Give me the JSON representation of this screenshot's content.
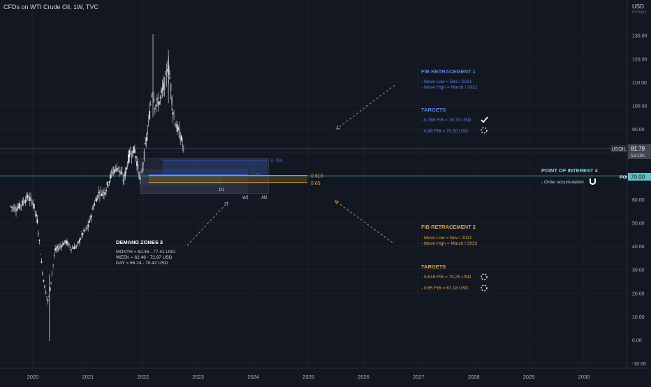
{
  "chart_data": {
    "type": "candlestick",
    "title": "CFDs on WTI Crude Oil, 1W, TVC",
    "currency": "USD",
    "currency_hint": "Multiply",
    "ylim": [
      -13,
      140
    ],
    "y_ticks": [
      130,
      120,
      110,
      100,
      90,
      80,
      70,
      60,
      50,
      40,
      30,
      20,
      10,
      0,
      -10
    ],
    "y_tick_labels": [
      "130.00",
      "120.00",
      "110.00",
      "100.00",
      "90.00",
      "80.00",
      "70.00",
      "60.00",
      "50.00",
      "40.00",
      "30.00",
      "20.00",
      "10.00",
      "0.00",
      "-10.00"
    ],
    "xlim": [
      2019.6,
      2030.9
    ],
    "x_ticks": [
      2020,
      2021,
      2022,
      2023,
      2024,
      2025,
      2026,
      2027,
      2028,
      2029,
      2030
    ],
    "x_tick_labels": [
      "2020",
      "2021",
      "2022",
      "2023",
      "2024",
      "2025",
      "2026",
      "2027",
      "2028",
      "2029",
      "2030"
    ],
    "grid": true,
    "price_path": [
      [
        2019.6,
        57
      ],
      [
        2019.7,
        56
      ],
      [
        2019.8,
        58
      ],
      [
        2019.9,
        61
      ],
      [
        2020.0,
        59
      ],
      [
        2020.08,
        51
      ],
      [
        2020.17,
        30
      ],
      [
        2020.22,
        22
      ],
      [
        2020.28,
        16
      ],
      [
        2020.33,
        25
      ],
      [
        2020.4,
        38
      ],
      [
        2020.5,
        40
      ],
      [
        2020.6,
        42
      ],
      [
        2020.7,
        39
      ],
      [
        2020.8,
        40
      ],
      [
        2020.92,
        46
      ],
      [
        2021.0,
        48
      ],
      [
        2021.1,
        57
      ],
      [
        2021.2,
        63
      ],
      [
        2021.3,
        63
      ],
      [
        2021.45,
        72
      ],
      [
        2021.55,
        74
      ],
      [
        2021.65,
        68
      ],
      [
        2021.75,
        79
      ],
      [
        2021.85,
        81
      ],
      [
        2021.95,
        68
      ],
      [
        2022.0,
        75
      ],
      [
        2022.1,
        92
      ],
      [
        2022.17,
        108
      ],
      [
        2022.22,
        100
      ],
      [
        2022.3,
        102
      ],
      [
        2022.35,
        106
      ],
      [
        2022.42,
        112
      ],
      [
        2022.45,
        118
      ],
      [
        2022.5,
        109
      ],
      [
        2022.55,
        96
      ],
      [
        2022.62,
        90
      ],
      [
        2022.68,
        87
      ],
      [
        2022.75,
        80
      ]
    ],
    "candle_wicks": [
      {
        "x": 2022.18,
        "high": 130.5,
        "low": 95
      },
      {
        "x": 2022.46,
        "high": 123.7,
        "low": 101
      },
      {
        "x": 2020.3,
        "low": -0.5,
        "high": 28
      }
    ],
    "last_price": {
      "symbol": "USOIL",
      "value": "81.79",
      "countdown": "1d 13h",
      "y": 81.79
    },
    "poi_level": {
      "label": "POI",
      "value": "70.00",
      "y": 70
    },
    "levels": [
      {
        "label": "0.786",
        "y": 76.79,
        "color": "#3f63c6",
        "x0": 2022.35,
        "x1": 2024.25
      },
      {
        "label": "0.88",
        "y": 70.5,
        "color": "#3f63c6",
        "x0": 2022.1,
        "x1": 2023.9
      },
      {
        "label": "0.618",
        "y": 70.25,
        "color": "#d4a04a",
        "x0": 2022.1,
        "x1": 2024.98
      },
      {
        "label": "0.65",
        "y": 67.18,
        "color": "#d4a04a",
        "x0": 2022.1,
        "x1": 2024.98
      }
    ],
    "demand_zone_labels": [
      "D1",
      "W1",
      "M1"
    ],
    "annotations": {
      "fib1": {
        "title": "FIB RETRACEMENT 1",
        "lines": [
          "- Move Low    =  Dec / 2021",
          "- Move High  =  March / 2022"
        ],
        "targets_title": "TARGETS",
        "targets": [
          "- 0,786 FIB  =  76,79 USD",
          "- 0,88   FIB  =  70,50 USD"
        ]
      },
      "fib2": {
        "title": "FIB RETRACEMENT 2",
        "lines": [
          "- Move Low    =  Nov / 2021",
          "- Move High  =  March / 2022"
        ],
        "targets_title": "TARGETS",
        "targets": [
          "- 0,618 FIB  =  70,25 USD",
          "- 0,65   FIB  =  67,18 USD"
        ]
      },
      "poi": {
        "title": "POINT OF INTEREST 4",
        "lines": [
          "- Order accumulation"
        ]
      },
      "demand": {
        "title": "DEMAND ZONES 3",
        "lines": [
          "MONTH  =  62.46 - 77.41 USD",
          "WEEK      =  62.46 - 72.97 USD",
          "DAY        =  66.24 - 70.42 USD"
        ]
      }
    },
    "colors": {
      "background": "#131722",
      "fib1": "#5b82d9",
      "fib2": "#e0a44a",
      "poi": "#7fd3d9",
      "candle": "#b2b5be",
      "axis_text": "#b2b5be"
    }
  }
}
